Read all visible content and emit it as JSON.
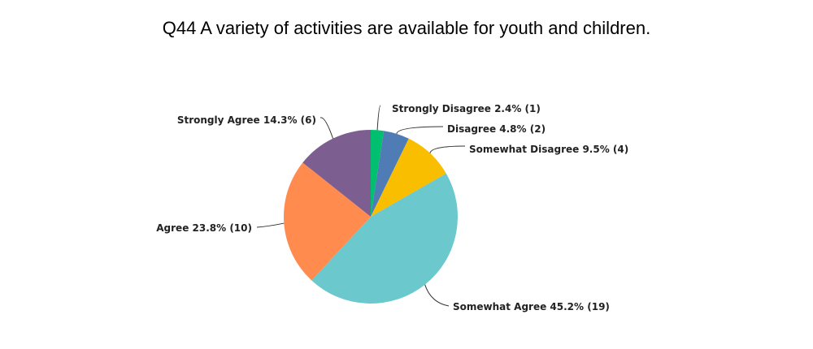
{
  "chart_data": {
    "type": "pie",
    "title": "Q44 A variety of activities are available for youth and children.",
    "slices": [
      {
        "label": "Strongly Disagree 2.4% (1)",
        "name": "Strongly Disagree",
        "percent": 2.4,
        "count": 1,
        "color": "#00BF6F"
      },
      {
        "label": "Disagree 4.8% (2)",
        "name": "Disagree",
        "percent": 4.8,
        "count": 2,
        "color": "#507CB6"
      },
      {
        "label": "Somewhat Disagree 9.5% (4)",
        "name": "Somewhat Disagree",
        "percent": 9.5,
        "count": 4,
        "color": "#F9BE00"
      },
      {
        "label": "Somewhat Agree 45.2% (19)",
        "name": "Somewhat Agree",
        "percent": 45.2,
        "count": 19,
        "color": "#6BC8CD"
      },
      {
        "label": "Agree 23.8% (10)",
        "name": "Agree",
        "percent": 23.8,
        "count": 10,
        "color": "#FF8B4F"
      },
      {
        "label": "Strongly Agree 14.3% (6)",
        "name": "Strongly Agree",
        "percent": 14.3,
        "count": 6,
        "color": "#7D5E90"
      }
    ]
  }
}
